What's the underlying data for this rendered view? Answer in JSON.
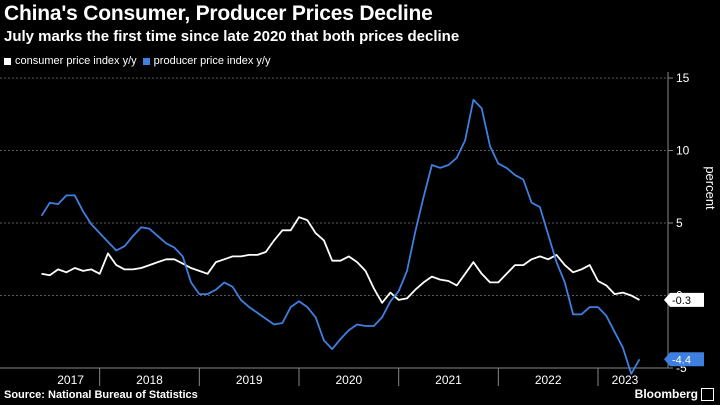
{
  "header": {
    "title": "China's Consumer, Producer Prices Decline",
    "subtitle": "July marks the first time since late 2020 that both prices decline"
  },
  "footer": {
    "source": "Source: National Bureau of Statistics",
    "brand": "Bloomberg"
  },
  "colors": {
    "background": "#000000",
    "cpi": "#ffffff",
    "ppi": "#3f7fe0",
    "grid": "#5a5a5a"
  },
  "chart_data": {
    "type": "line",
    "title": "China's Consumer, Producer Prices Decline",
    "subtitle": "July marks the first time since late 2020 that both prices decline",
    "ylabel": "percent",
    "ylim": [
      -5,
      15
    ],
    "yticks": [
      -5,
      0,
      5,
      10,
      15
    ],
    "ytick_labels": [
      "-5",
      "0",
      "5",
      "10",
      "15"
    ],
    "x_start": "2017-06",
    "x_end": "2023-07",
    "year_labels": [
      "2017",
      "2018",
      "2019",
      "2020",
      "2021",
      "2022",
      "2023"
    ],
    "grid": true,
    "legend_position": "top-left",
    "series": [
      {
        "name": "consumer price index y/y",
        "color": "#ffffff",
        "end_label": "-0.3",
        "values": [
          1.5,
          1.4,
          1.8,
          1.6,
          1.9,
          1.7,
          1.8,
          1.5,
          2.9,
          2.1,
          1.8,
          1.8,
          1.9,
          2.1,
          2.3,
          2.5,
          2.5,
          2.2,
          1.9,
          1.7,
          1.5,
          2.3,
          2.5,
          2.7,
          2.7,
          2.8,
          2.8,
          3.0,
          3.8,
          4.5,
          4.5,
          5.4,
          5.2,
          4.3,
          3.8,
          2.4,
          2.4,
          2.7,
          2.3,
          1.7,
          0.5,
          -0.5,
          0.2,
          -0.3,
          -0.2,
          0.4,
          0.9,
          1.3,
          1.1,
          1.0,
          0.7,
          1.5,
          2.3,
          1.5,
          0.9,
          0.9,
          1.5,
          2.1,
          2.1,
          2.5,
          2.7,
          2.5,
          2.8,
          2.1,
          1.6,
          1.8,
          2.1,
          1.0,
          0.7,
          0.1,
          0.2,
          0.0,
          -0.3
        ]
      },
      {
        "name": "producer price index y/y",
        "color": "#3f7fe0",
        "end_label": "-4.4",
        "values": [
          5.5,
          6.4,
          6.3,
          6.9,
          6.9,
          5.8,
          4.9,
          4.3,
          3.7,
          3.1,
          3.4,
          4.1,
          4.7,
          4.6,
          4.1,
          3.6,
          3.3,
          2.7,
          0.9,
          0.1,
          0.1,
          0.4,
          0.9,
          0.6,
          -0.3,
          -0.8,
          -1.2,
          -1.6,
          -2.0,
          -1.9,
          -0.8,
          -0.4,
          -0.8,
          -1.5,
          -3.1,
          -3.7,
          -3.0,
          -2.4,
          -2.0,
          -2.1,
          -2.1,
          -1.5,
          -0.4,
          0.3,
          1.7,
          4.4,
          6.8,
          9.0,
          8.8,
          9.0,
          9.5,
          10.7,
          13.5,
          12.9,
          10.3,
          9.1,
          8.8,
          8.3,
          8.0,
          6.4,
          6.1,
          4.2,
          2.3,
          0.9,
          -1.3,
          -1.3,
          -0.8,
          -0.8,
          -1.4,
          -2.5,
          -3.6,
          -5.4,
          -4.4
        ]
      }
    ]
  }
}
